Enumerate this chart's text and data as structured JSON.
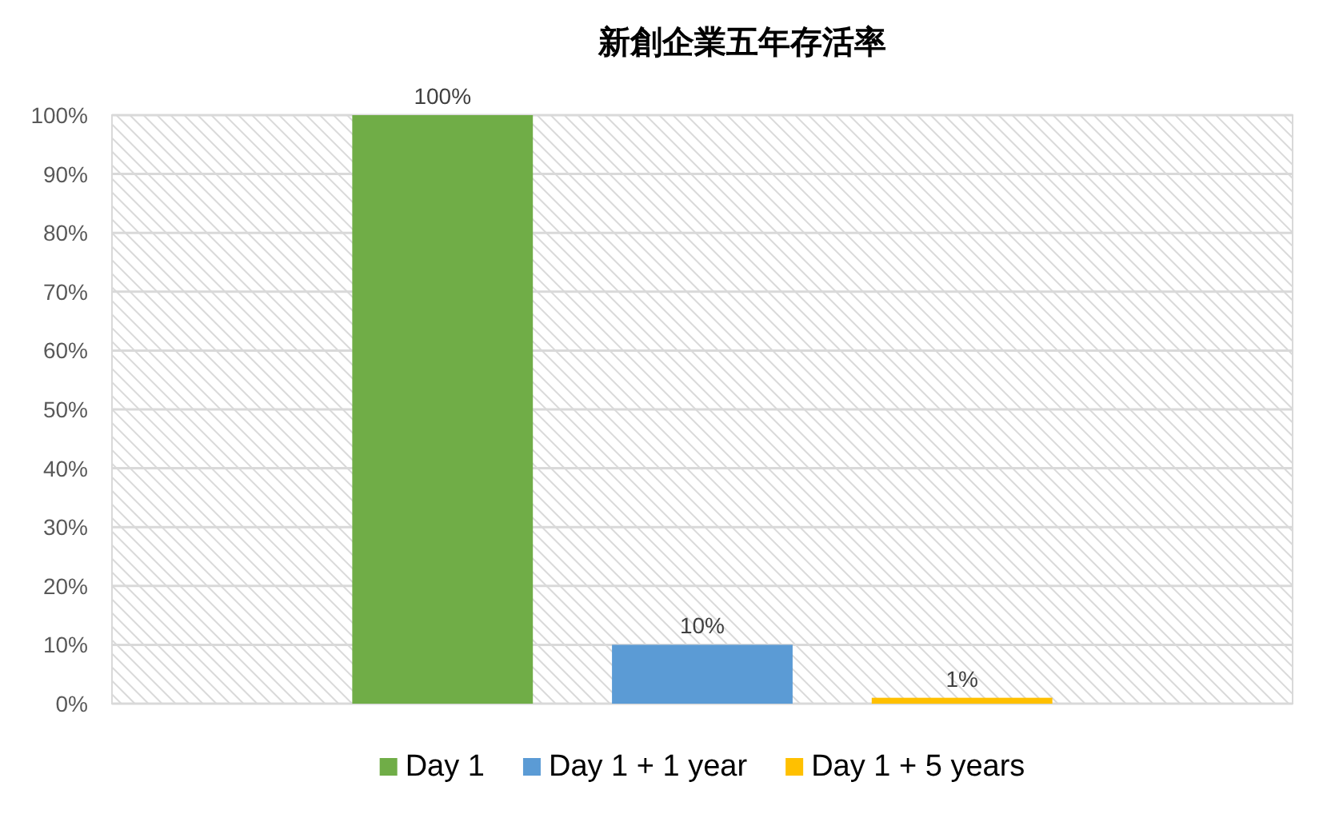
{
  "chart_data": {
    "type": "bar",
    "title": "新創企業五年存活率",
    "categories": [
      null
    ],
    "series": [
      {
        "name": "Day 1",
        "color": "#70ad47",
        "values": [
          100
        ],
        "value_labels": [
          "100%"
        ]
      },
      {
        "name": "Day 1 + 1 year",
        "color": "#5b9bd5",
        "values": [
          10
        ],
        "value_labels": [
          "10%"
        ]
      },
      {
        "name": "Day 1 + 5 years",
        "color": "#ffc000",
        "values": [
          1
        ],
        "value_labels": [
          "1%"
        ]
      }
    ],
    "ylim": [
      0,
      100
    ],
    "yticks": [
      {
        "value": 0,
        "label": "0%"
      },
      {
        "value": 10,
        "label": "10%"
      },
      {
        "value": 20,
        "label": "20%"
      },
      {
        "value": 30,
        "label": "30%"
      },
      {
        "value": 40,
        "label": "40%"
      },
      {
        "value": 50,
        "label": "50%"
      },
      {
        "value": 60,
        "label": "60%"
      },
      {
        "value": 70,
        "label": "70%"
      },
      {
        "value": 80,
        "label": "80%"
      },
      {
        "value": 90,
        "label": "90%"
      },
      {
        "value": 100,
        "label": "100%"
      }
    ],
    "grid": "y",
    "legend": "bottom"
  }
}
